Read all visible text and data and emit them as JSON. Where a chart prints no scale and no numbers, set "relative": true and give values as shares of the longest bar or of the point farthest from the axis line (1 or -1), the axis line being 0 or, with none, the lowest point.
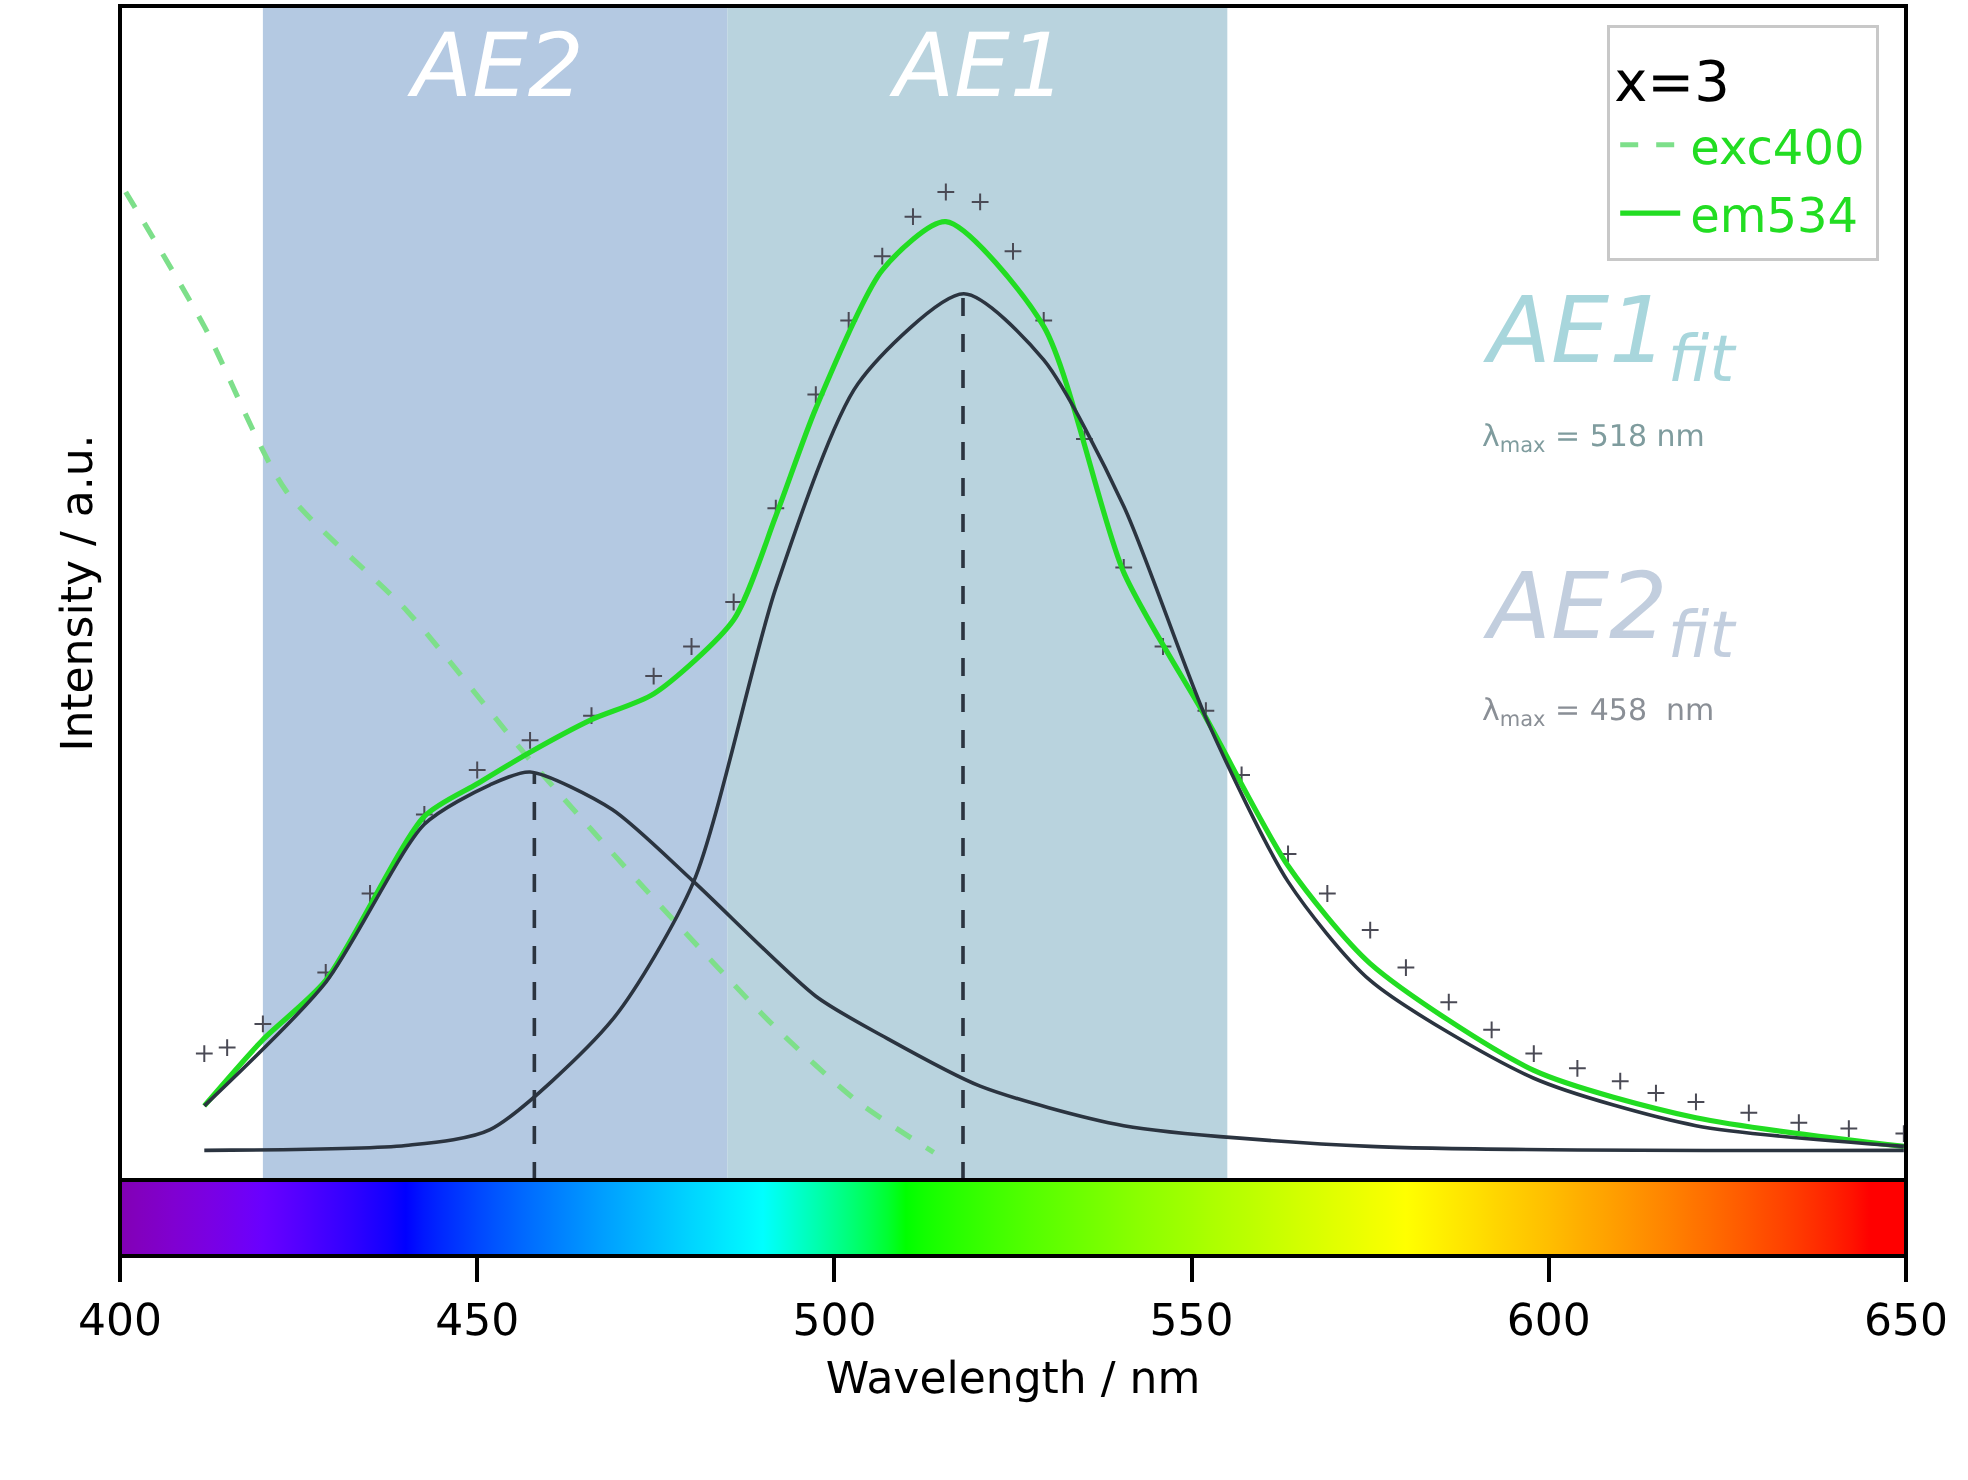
{
  "chart_data": {
    "type": "line",
    "relative": true,
    "xlabel": "Wavelength / nm",
    "ylabel": "Intensity / a.u.",
    "legend_title": "x=3",
    "legend": "top right",
    "xlim": [
      400,
      650
    ],
    "xticks": [
      400,
      450,
      500,
      550,
      600,
      650
    ],
    "grid": false,
    "series": [
      {
        "name": "exc400",
        "color": "#7ddf8a",
        "line_style": "dashed",
        "x": [
          400.8,
          411.8,
          423.2,
          440.3,
          457.4,
          474.7,
          491.8,
          503.3,
          513.9
        ],
        "values": [
          1,
          0.864,
          0.698,
          0.575,
          0.425,
          0.285,
          0.154,
          0.079,
          0.028
        ]
      },
      {
        "type": "scatter",
        "marker": "cross",
        "color": "#4a4a55",
        "x": [
          411.8,
          415,
          420,
          428.8,
          435,
          442.6,
          450,
          457.4,
          466,
          474.7,
          480,
          485.9,
          491.8,
          497.4,
          502,
          506.7,
          511,
          515.6,
          520.4,
          525,
          529.3,
          535,
          540.5,
          546,
          552.0,
          557,
          563.5,
          569,
          575.0,
          580,
          586,
          592,
          597.9,
          604,
          610,
          615,
          620.6,
          628,
          635,
          642,
          649.7
        ],
        "values": [
          0.128,
          0.134,
          0.158,
          0.21,
          0.29,
          0.37,
          0.415,
          0.445,
          0.47,
          0.51,
          0.54,
          0.585,
          0.68,
          0.795,
          0.87,
          0.935,
          0.975,
          1,
          0.99,
          0.94,
          0.87,
          0.75,
          0.62,
          0.54,
          0.475,
          0.41,
          0.33,
          0.29,
          0.253,
          0.215,
          0.18,
          0.152,
          0.128,
          0.113,
          0.1,
          0.088,
          0.079,
          0.068,
          0.058,
          0.052,
          0.047
        ]
      },
      {
        "name": "em534",
        "color": "#22dd22",
        "line_style": "solid",
        "x": [
          411.8,
          420,
          428.8,
          442.6,
          450,
          457.4,
          466,
          474.7,
          485.9,
          491.8,
          497.4,
          506.7,
          515.6,
          529.3,
          540.5,
          552.0,
          563.5,
          575.0,
          597.9,
          620.6,
          649.7
        ],
        "values": [
          0.075,
          0.142,
          0.202,
          0.368,
          0.401,
          0.433,
          0.466,
          0.492,
          0.567,
          0.672,
          0.781,
          0.921,
          0.97,
          0.864,
          0.615,
          0.468,
          0.318,
          0.219,
          0.111,
          0.063,
          0.034
        ]
      },
      {
        "color": "#2b3440",
        "line_style": "solid",
        "x": [
          411.8,
          440,
          451.8,
          468.9,
          480.3,
          491.8,
          503.3,
          518.1,
          529.3,
          540.5,
          552.0,
          563.5,
          575.0,
          597.9,
          620.6,
          649.7
        ],
        "values": [
          0.03,
          0.035,
          0.051,
          0.162,
          0.302,
          0.599,
          0.806,
          0.897,
          0.83,
          0.682,
          0.468,
          0.302,
          0.202,
          0.103,
          0.055,
          0.034
        ]
      },
      {
        "color": "#2b3440",
        "line_style": "solid",
        "x": [
          411.8,
          428.8,
          442.6,
          451.8,
          457.4,
          468.9,
          480.3,
          497.4,
          506.7,
          520.4,
          540.5,
          575.0,
          649.7
        ],
        "values": [
          0.075,
          0.2,
          0.36,
          0.4,
          0.413,
          0.375,
          0.302,
          0.186,
          0.146,
          0.095,
          0.055,
          0.034,
          0.03
        ]
      },
      {
        "color": "#2b3440",
        "line_style": "dashed",
        "x": [
          458,
          458
        ],
        "values": [
          0,
          0.413
        ]
      },
      {
        "color": "#2b3440",
        "line_style": "dashed",
        "x": [
          518,
          518
        ],
        "values": [
          0,
          0.897
        ]
      }
    ],
    "bands": [
      {
        "axis": "x",
        "from": 420,
        "to": 485,
        "label": "AE2",
        "color": "#b4c9e2"
      },
      {
        "axis": "x",
        "from": 485,
        "to": 555,
        "label": "AE1",
        "color": "#b9d3de"
      }
    ],
    "annotations": [
      "AE1$_{fit}$",
      "λ$_{max}$ = 518 nm",
      "AE2$_{fit}$",
      "λ$_{max}$ = 458  nm"
    ]
  }
}
